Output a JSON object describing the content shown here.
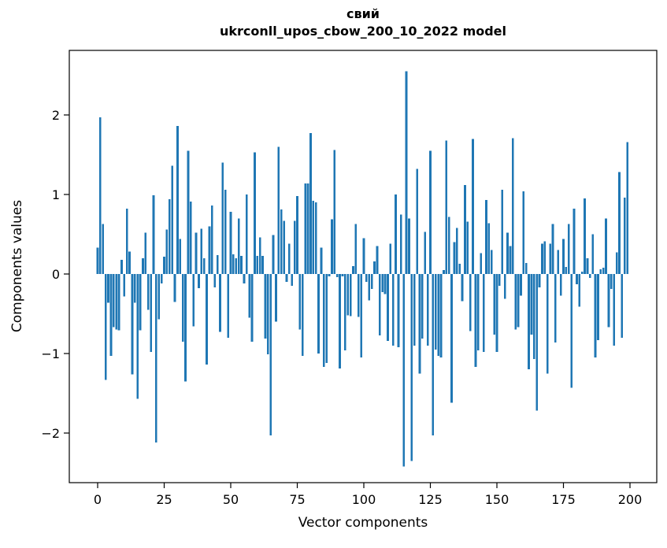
{
  "title": {
    "line1": "свий",
    "line2": "ukrconll_upos_cbow_200_10_2022 model"
  },
  "chart_data": {
    "type": "bar",
    "title": "свий",
    "subtitle": "ukrconll_upos_cbow_200_10_2022 model",
    "xlabel": "Vector components",
    "ylabel": "Components values",
    "x_tick_labels": [
      "0",
      "25",
      "50",
      "75",
      "100",
      "125",
      "150",
      "175",
      "200"
    ],
    "x_ticks": [
      0,
      25,
      50,
      75,
      100,
      125,
      150,
      175,
      200
    ],
    "y_tick_labels": [
      "−2",
      "−1",
      "0",
      "1",
      "2"
    ],
    "y_ticks": [
      -2,
      -1,
      0,
      1,
      2
    ],
    "xlim": [
      -10.6,
      210.2
    ],
    "ylim": [
      -2.62,
      2.81
    ],
    "grid": false,
    "legend": null,
    "bar_color": "#1f77b4",
    "n_components": 200,
    "values": [
      0.33,
      1.97,
      0.63,
      -1.33,
      -0.36,
      -1.03,
      -0.67,
      -0.7,
      -0.71,
      0.18,
      -0.28,
      0.82,
      0.28,
      -1.26,
      -0.36,
      -1.57,
      -0.71,
      0.2,
      0.52,
      -0.45,
      -0.98,
      0.99,
      -2.12,
      -0.57,
      -0.12,
      0.22,
      0.56,
      0.94,
      1.36,
      -0.35,
      1.86,
      0.44,
      -0.85,
      -1.35,
      1.55,
      0.91,
      -0.66,
      0.52,
      -0.18,
      0.57,
      0.2,
      -1.14,
      0.6,
      0.86,
      -0.17,
      0.24,
      -0.73,
      1.4,
      1.06,
      -0.8,
      0.78,
      0.25,
      0.2,
      0.7,
      0.23,
      -0.12,
      1.0,
      -0.55,
      -0.85,
      1.53,
      0.23,
      0.46,
      0.23,
      -0.81,
      -1.01,
      -2.03,
      0.49,
      -0.6,
      1.6,
      0.81,
      0.67,
      -0.1,
      0.38,
      -0.15,
      0.67,
      0.98,
      -0.7,
      -1.03,
      1.14,
      1.14,
      1.77,
      0.92,
      0.9,
      -1.0,
      0.33,
      -1.17,
      -1.12,
      -0.03,
      0.69,
      1.56,
      -0.04,
      -1.19,
      -0.03,
      -0.96,
      -0.52,
      -0.53,
      0.1,
      0.63,
      -0.54,
      -1.05,
      0.45,
      -0.1,
      -0.33,
      -0.19,
      0.16,
      0.35,
      -0.77,
      -0.23,
      -0.25,
      -0.84,
      0.38,
      -0.9,
      1.0,
      -0.92,
      0.75,
      -2.42,
      2.55,
      0.7,
      -2.35,
      -0.9,
      1.32,
      -1.25,
      -0.81,
      0.53,
      -0.9,
      1.55,
      -2.03,
      -0.95,
      -1.03,
      -1.05,
      0.05,
      1.68,
      0.72,
      -1.62,
      0.4,
      0.58,
      0.13,
      -0.34,
      1.12,
      0.66,
      -0.72,
      1.7,
      -1.17,
      -0.96,
      0.26,
      -0.98,
      0.93,
      0.64,
      0.3,
      -0.76,
      -0.98,
      -0.15,
      1.06,
      -0.31,
      0.52,
      0.35,
      1.71,
      -0.7,
      -0.67,
      -0.27,
      1.04,
      0.14,
      -1.2,
      -0.76,
      -1.07,
      -1.72,
      -0.17,
      0.38,
      0.41,
      -1.25,
      0.38,
      0.63,
      -0.86,
      0.3,
      -0.27,
      0.44,
      0.09,
      0.63,
      -1.43,
      0.82,
      -0.13,
      -0.41,
      0.03,
      0.95,
      0.2,
      -0.05,
      0.5,
      -1.05,
      -0.83,
      0.06,
      0.08,
      0.7,
      -0.67,
      -0.19,
      -0.9,
      0.27,
      1.28,
      -0.8,
      0.96,
      1.66
    ]
  }
}
